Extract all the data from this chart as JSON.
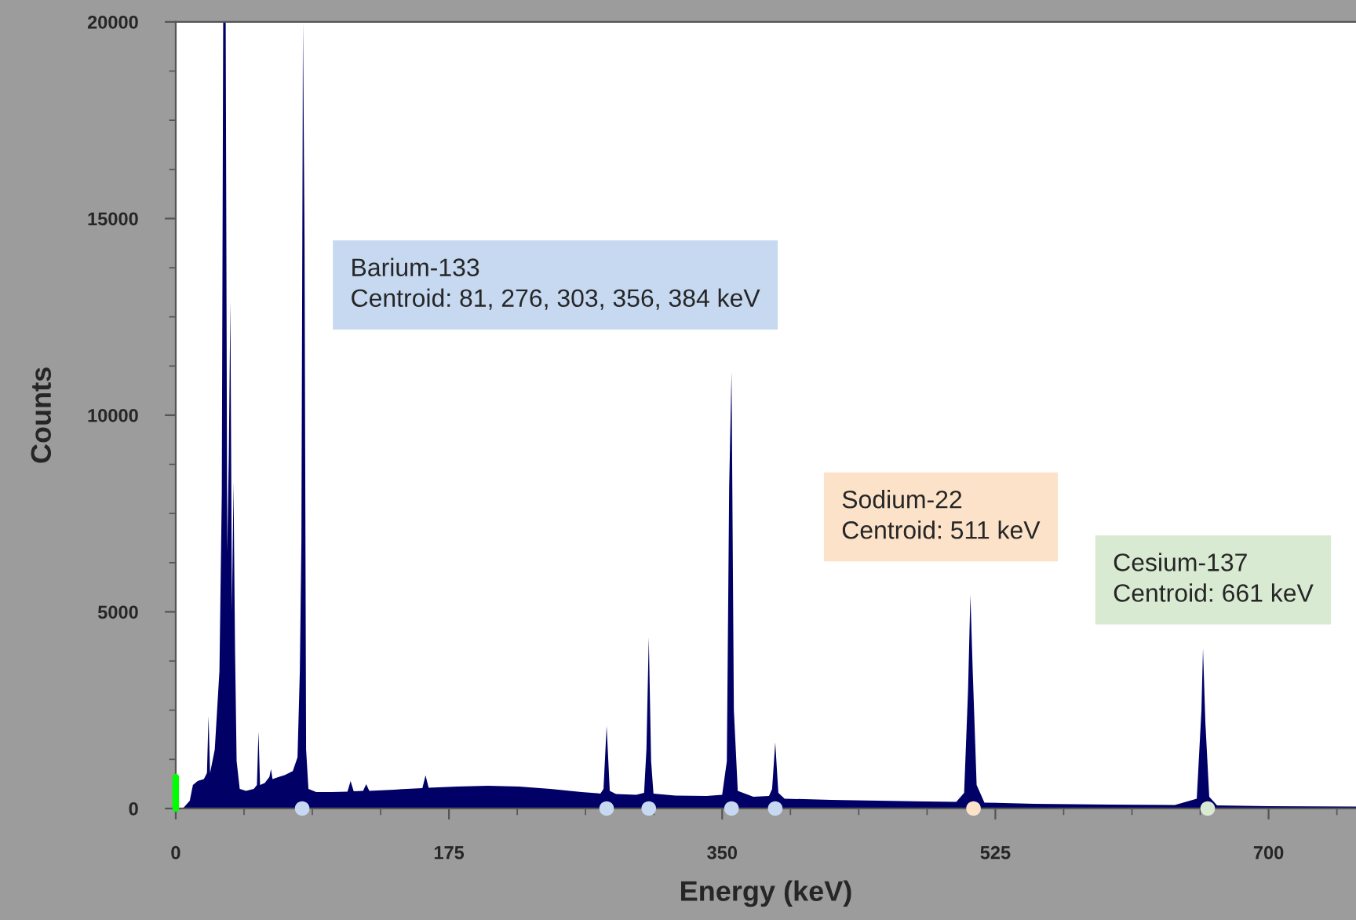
{
  "chart_data": {
    "type": "area",
    "xlabel": "Energy (keV)",
    "ylabel": "Counts",
    "xlim": [
      0,
      756
    ],
    "xticks": [
      0,
      175,
      350,
      525,
      700
    ],
    "ylim": [
      0,
      20000
    ],
    "yticks": [
      0,
      5000,
      10000,
      15000,
      20000
    ],
    "grid": false,
    "legend": false,
    "series": [
      {
        "color": "#000066",
        "x": [
          0,
          5,
          9,
          11,
          14,
          18,
          20,
          21,
          22,
          25,
          28,
          29.5,
          30.4,
          32,
          33,
          34,
          35,
          36,
          37,
          38,
          39,
          41,
          45,
          50,
          52,
          53,
          54,
          57,
          60,
          61,
          62,
          66,
          70,
          75,
          78,
          79.5,
          80.5,
          81.5,
          82.5,
          83.5,
          85,
          90,
          100,
          110,
          112,
          114,
          120,
          122,
          124,
          140,
          158,
          160,
          162,
          180,
          200,
          220,
          240,
          260,
          272,
          274,
          276,
          278,
          282,
          295,
          300,
          301.5,
          303,
          304.5,
          306,
          320,
          340,
          350,
          353,
          354.5,
          356,
          357.5,
          360,
          370,
          380,
          382,
          384,
          386,
          390,
          420,
          450,
          480,
          500,
          505,
          507.5,
          509,
          510.5,
          513,
          518,
          550,
          600,
          640,
          654,
          657,
          658,
          659.5,
          662,
          667,
          700,
          756
        ],
        "values": [
          0,
          20,
          200,
          600,
          700,
          750,
          900,
          2350,
          900,
          1500,
          3500,
          8000,
          20000,
          20000,
          6500,
          9000,
          12900,
          5000,
          8300,
          4000,
          1200,
          500,
          450,
          500,
          600,
          1960,
          600,
          650,
          800,
          1000,
          750,
          800,
          850,
          950,
          1300,
          3500,
          6800,
          20000,
          14500,
          1500,
          500,
          420,
          420,
          430,
          700,
          440,
          450,
          620,
          450,
          480,
          520,
          840,
          530,
          560,
          580,
          560,
          500,
          420,
          380,
          500,
          2100,
          450,
          370,
          350,
          400,
          1500,
          4350,
          1200,
          380,
          330,
          320,
          350,
          1200,
          8200,
          11100,
          2500,
          450,
          300,
          320,
          500,
          1680,
          400,
          250,
          220,
          200,
          180,
          170,
          400,
          3000,
          5430,
          3500,
          600,
          150,
          120,
          100,
          90,
          250,
          2500,
          4070,
          2200,
          300,
          80,
          60,
          50
        ]
      },
      {
        "type": "line",
        "color": "#00ff00",
        "x": [
          0,
          0
        ],
        "values": [
          0,
          800
        ]
      },
      {
        "type": "scatter",
        "x": [
          81,
          276,
          303,
          356,
          384,
          511,
          661
        ],
        "values": [
          0,
          0,
          0,
          0,
          0,
          0,
          0
        ],
        "colors": [
          "#c6d9f1",
          "#c6d9f1",
          "#c6d9f1",
          "#c6d9f1",
          "#c6d9f1",
          "#fbe2c9",
          "#d9ead3"
        ]
      }
    ],
    "annotations": [
      "Barium-133\nCentroid: 81, 276, 303, 356, 384 keV",
      "Sodium-22\nCentroid: 511 keV",
      "Cesium-137\nCentroid: 661 keV"
    ]
  }
}
